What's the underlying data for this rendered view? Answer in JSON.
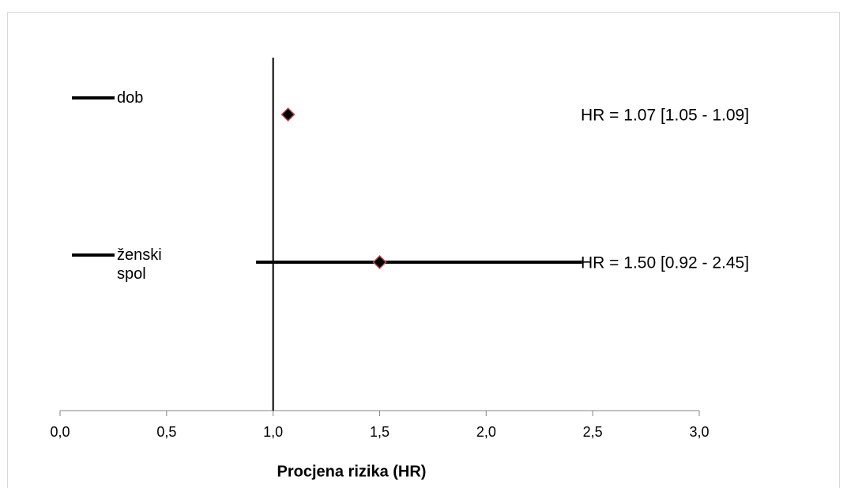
{
  "chart_data": {
    "type": "forest",
    "x_label": "Procjena rizika (HR)",
    "categories": [
      "dob",
      "ženski spol"
    ],
    "values": [
      1.07,
      1.5
    ],
    "lower": [
      1.05,
      0.92
    ],
    "upper": [
      1.09,
      2.45
    ],
    "value_labels": [
      "HR = 1.07 [1.05 - 1.09]",
      "HR = 1.50 [0.92 - 2.45]"
    ],
    "color": "#000000",
    "marker_edge_color": "#c0504d",
    "reference_line": 1,
    "xlim": [
      0,
      3
    ],
    "xticks": [
      {
        "value": 0,
        "label": "0,0"
      },
      {
        "value": 0.5,
        "label": "0,5"
      },
      {
        "value": 1,
        "label": "1,0"
      },
      {
        "value": 1.5,
        "label": "1,5"
      },
      {
        "value": 2,
        "label": "2,0"
      },
      {
        "value": 2.5,
        "label": "2,5"
      },
      {
        "value": 3,
        "label": "3,0"
      }
    ],
    "legend": "left"
  }
}
